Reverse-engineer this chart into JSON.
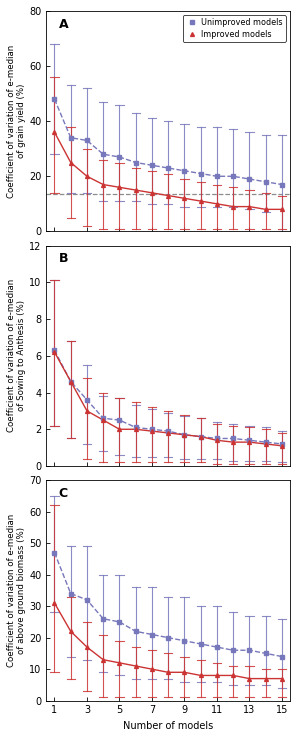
{
  "x": [
    1,
    2,
    3,
    4,
    5,
    6,
    7,
    8,
    9,
    10,
    11,
    12,
    13,
    14,
    15
  ],
  "panel_A": {
    "label": "A",
    "ylabel": "Coefficient of variation of e-median\nof grain yield (%)",
    "ylim": [
      0,
      80
    ],
    "yticks": [
      0,
      20,
      40,
      60,
      80
    ],
    "hline": 13.5,
    "blue_mean": [
      48,
      34,
      33,
      28,
      27,
      25,
      24,
      23,
      22,
      21,
      20,
      20,
      19,
      18,
      17
    ],
    "blue_lo": [
      28,
      14,
      14,
      11,
      11,
      11,
      10,
      10,
      9,
      9,
      9,
      9,
      8,
      7,
      0
    ],
    "blue_hi": [
      68,
      53,
      52,
      47,
      46,
      43,
      41,
      40,
      39,
      38,
      38,
      37,
      36,
      35,
      35
    ],
    "red_mean": [
      36,
      25,
      20,
      17,
      16,
      15,
      14,
      13,
      12,
      11,
      10,
      9,
      9,
      8,
      8
    ],
    "red_lo": [
      14,
      5,
      2,
      1,
      1,
      1,
      1,
      1,
      1,
      1,
      1,
      1,
      1,
      1,
      1
    ],
    "red_hi": [
      56,
      38,
      30,
      26,
      25,
      23,
      22,
      21,
      19,
      18,
      17,
      16,
      15,
      14,
      13
    ]
  },
  "panel_B": {
    "label": "B",
    "ylabel": "Coefficient of variation of e-median\nof Sowing to Anthesis (%)",
    "ylim": [
      0,
      12
    ],
    "yticks": [
      0,
      2,
      4,
      6,
      8,
      10,
      12
    ],
    "hline": null,
    "blue_mean": [
      6.3,
      4.6,
      3.6,
      2.6,
      2.5,
      2.1,
      2.0,
      1.9,
      1.7,
      1.6,
      1.5,
      1.5,
      1.4,
      1.3,
      1.2
    ],
    "blue_lo": [
      2.2,
      1.5,
      1.2,
      0.8,
      0.6,
      0.5,
      0.5,
      0.5,
      0.4,
      0.4,
      0.4,
      0.3,
      0.3,
      0.3,
      0.2
    ],
    "blue_hi": [
      10.1,
      6.8,
      5.5,
      3.8,
      3.7,
      3.3,
      3.1,
      2.9,
      2.7,
      2.6,
      2.4,
      2.3,
      2.2,
      2.1,
      1.9
    ],
    "red_mean": [
      6.2,
      4.6,
      3.0,
      2.5,
      2.0,
      2.0,
      1.9,
      1.8,
      1.7,
      1.6,
      1.4,
      1.3,
      1.3,
      1.2,
      1.1
    ],
    "red_lo": [
      2.2,
      1.5,
      0.4,
      0.2,
      0.2,
      0.2,
      0.2,
      0.2,
      0.2,
      0.2,
      0.1,
      0.1,
      0.1,
      0.1,
      0.1
    ],
    "red_hi": [
      10.1,
      6.8,
      4.8,
      4.0,
      3.7,
      3.5,
      3.2,
      3.0,
      2.8,
      2.6,
      2.3,
      2.2,
      2.1,
      2.0,
      1.8
    ]
  },
  "panel_C": {
    "label": "C",
    "ylabel": "Coefficient of variation of e-median\nof above ground biomass (%)",
    "ylim": [
      0,
      70
    ],
    "yticks": [
      0,
      10,
      20,
      30,
      40,
      50,
      60,
      70
    ],
    "hline": null,
    "blue_mean": [
      47,
      34,
      32,
      26,
      25,
      22,
      21,
      20,
      19,
      18,
      17,
      16,
      16,
      15,
      14
    ],
    "blue_lo": [
      28,
      14,
      13,
      9,
      8,
      7,
      7,
      7,
      6,
      6,
      6,
      5,
      5,
      5,
      4
    ],
    "blue_hi": [
      65,
      49,
      49,
      40,
      40,
      36,
      36,
      33,
      33,
      30,
      30,
      28,
      27,
      27,
      26
    ],
    "red_mean": [
      31,
      22,
      17,
      13,
      12,
      11,
      10,
      9,
      9,
      8,
      8,
      8,
      7,
      7,
      7
    ],
    "red_lo": [
      9,
      7,
      3,
      1,
      1,
      1,
      1,
      1,
      1,
      1,
      1,
      1,
      1,
      1,
      1
    ],
    "red_hi": [
      62,
      33,
      25,
      21,
      19,
      17,
      16,
      15,
      14,
      13,
      12,
      11,
      11,
      10,
      10
    ]
  },
  "blue_color": "#7777bb",
  "red_color": "#cc3333",
  "xlabel": "Number of models",
  "xticks": [
    1,
    3,
    5,
    7,
    9,
    11,
    13,
    15
  ],
  "xlim": [
    0.5,
    15.5
  ],
  "background_color": "#ffffff",
  "legend_labels": [
    "Unimproved models",
    "Improved models"
  ]
}
